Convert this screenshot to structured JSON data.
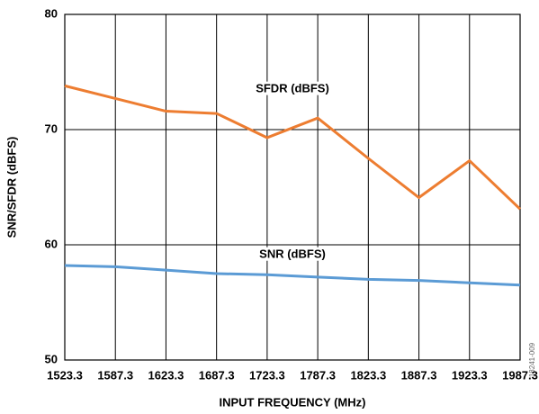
{
  "chart_data": {
    "type": "line",
    "x_label": "INPUT FREQUENCY (MHz)",
    "y_label": "SNR/SFDR (dBFS)",
    "categories": [
      "1523.3",
      "1587.3",
      "1623.3",
      "1687.3",
      "1723.3",
      "1787.3",
      "1823.3",
      "1887.3",
      "1923.3",
      "1987.3"
    ],
    "series": [
      {
        "name": "SFDR (dBFS)",
        "color": "#ed7d31",
        "values": [
          73.8,
          72.7,
          71.6,
          71.4,
          69.3,
          71.0,
          67.5,
          64.1,
          67.3,
          63.1
        ]
      },
      {
        "name": "SNR (dBFS)",
        "color": "#5b9bd5",
        "values": [
          58.2,
          58.1,
          57.8,
          57.5,
          57.4,
          57.2,
          57.0,
          56.9,
          56.7,
          56.5
        ]
      }
    ],
    "ylim": [
      50,
      80
    ],
    "yticks": [
      50,
      60,
      70,
      80
    ],
    "grid": true,
    "figure_code": "18241-009"
  }
}
